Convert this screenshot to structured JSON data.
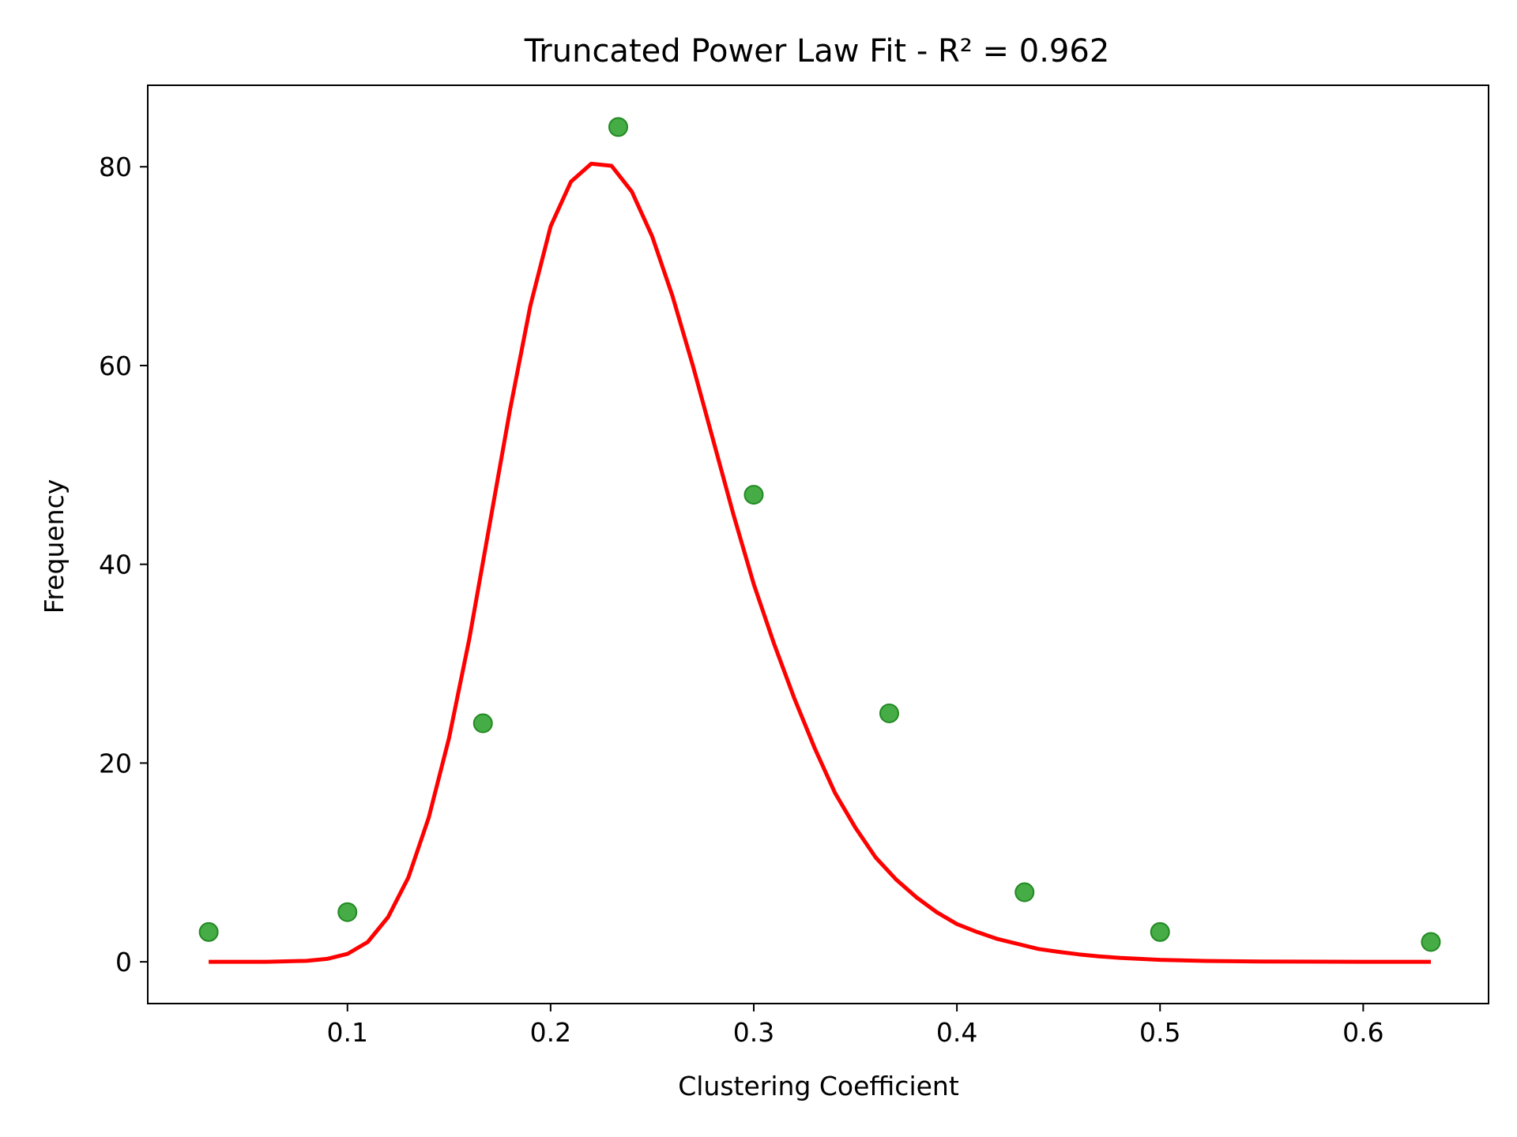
{
  "chart_data": {
    "type": "scatter",
    "title": "Truncated Power Law Fit - R² = 0.962",
    "xlabel": "Clustering Coefficient",
    "ylabel": "Frequency",
    "xlim": [
      0.0017,
      0.6617
    ],
    "ylim": [
      -4.2,
      88.2
    ],
    "x_ticks": [
      0.1,
      0.2,
      0.3,
      0.4,
      0.5,
      0.6
    ],
    "x_tick_labels": [
      "0.1",
      "0.2",
      "0.3",
      "0.4",
      "0.5",
      "0.6"
    ],
    "y_ticks": [
      0,
      20,
      40,
      60,
      80
    ],
    "y_tick_labels": [
      "0",
      "20",
      "40",
      "60",
      "80"
    ],
    "grid": false,
    "series": [
      {
        "kind": "scatter",
        "color": "#2ca02c",
        "x": [
          0.0317,
          0.1,
          0.1667,
          0.2333,
          0.3,
          0.3667,
          0.4333,
          0.5,
          0.6333
        ],
        "y": [
          3,
          5,
          24,
          84,
          47,
          25,
          7,
          3,
          2
        ]
      },
      {
        "kind": "line",
        "color": "#ff0000",
        "model": "truncated power law fit",
        "x_range": [
          0.0317,
          0.6333
        ],
        "x": [
          0.0317,
          0.06,
          0.08,
          0.09,
          0.1,
          0.11,
          0.12,
          0.13,
          0.14,
          0.15,
          0.16,
          0.17,
          0.18,
          0.19,
          0.2,
          0.21,
          0.22,
          0.23,
          0.24,
          0.25,
          0.26,
          0.27,
          0.28,
          0.29,
          0.3,
          0.31,
          0.32,
          0.33,
          0.34,
          0.35,
          0.36,
          0.37,
          0.38,
          0.39,
          0.4,
          0.41,
          0.42,
          0.43,
          0.44,
          0.45,
          0.46,
          0.47,
          0.48,
          0.5,
          0.52,
          0.55,
          0.6,
          0.6333
        ],
        "y": [
          0,
          0,
          0.1,
          0.3,
          0.8,
          2.0,
          4.5,
          8.5,
          14.5,
          22.5,
          32.5,
          44,
          55.5,
          66,
          74,
          78.5,
          80.3,
          80.1,
          77.5,
          73,
          67,
          60,
          52.5,
          45,
          38,
          32,
          26.5,
          21.5,
          17,
          13.5,
          10.5,
          8.3,
          6.5,
          5.0,
          3.8,
          3.0,
          2.3,
          1.8,
          1.3,
          1.0,
          0.75,
          0.55,
          0.4,
          0.2,
          0.1,
          0.03,
          0,
          0
        ]
      }
    ]
  }
}
